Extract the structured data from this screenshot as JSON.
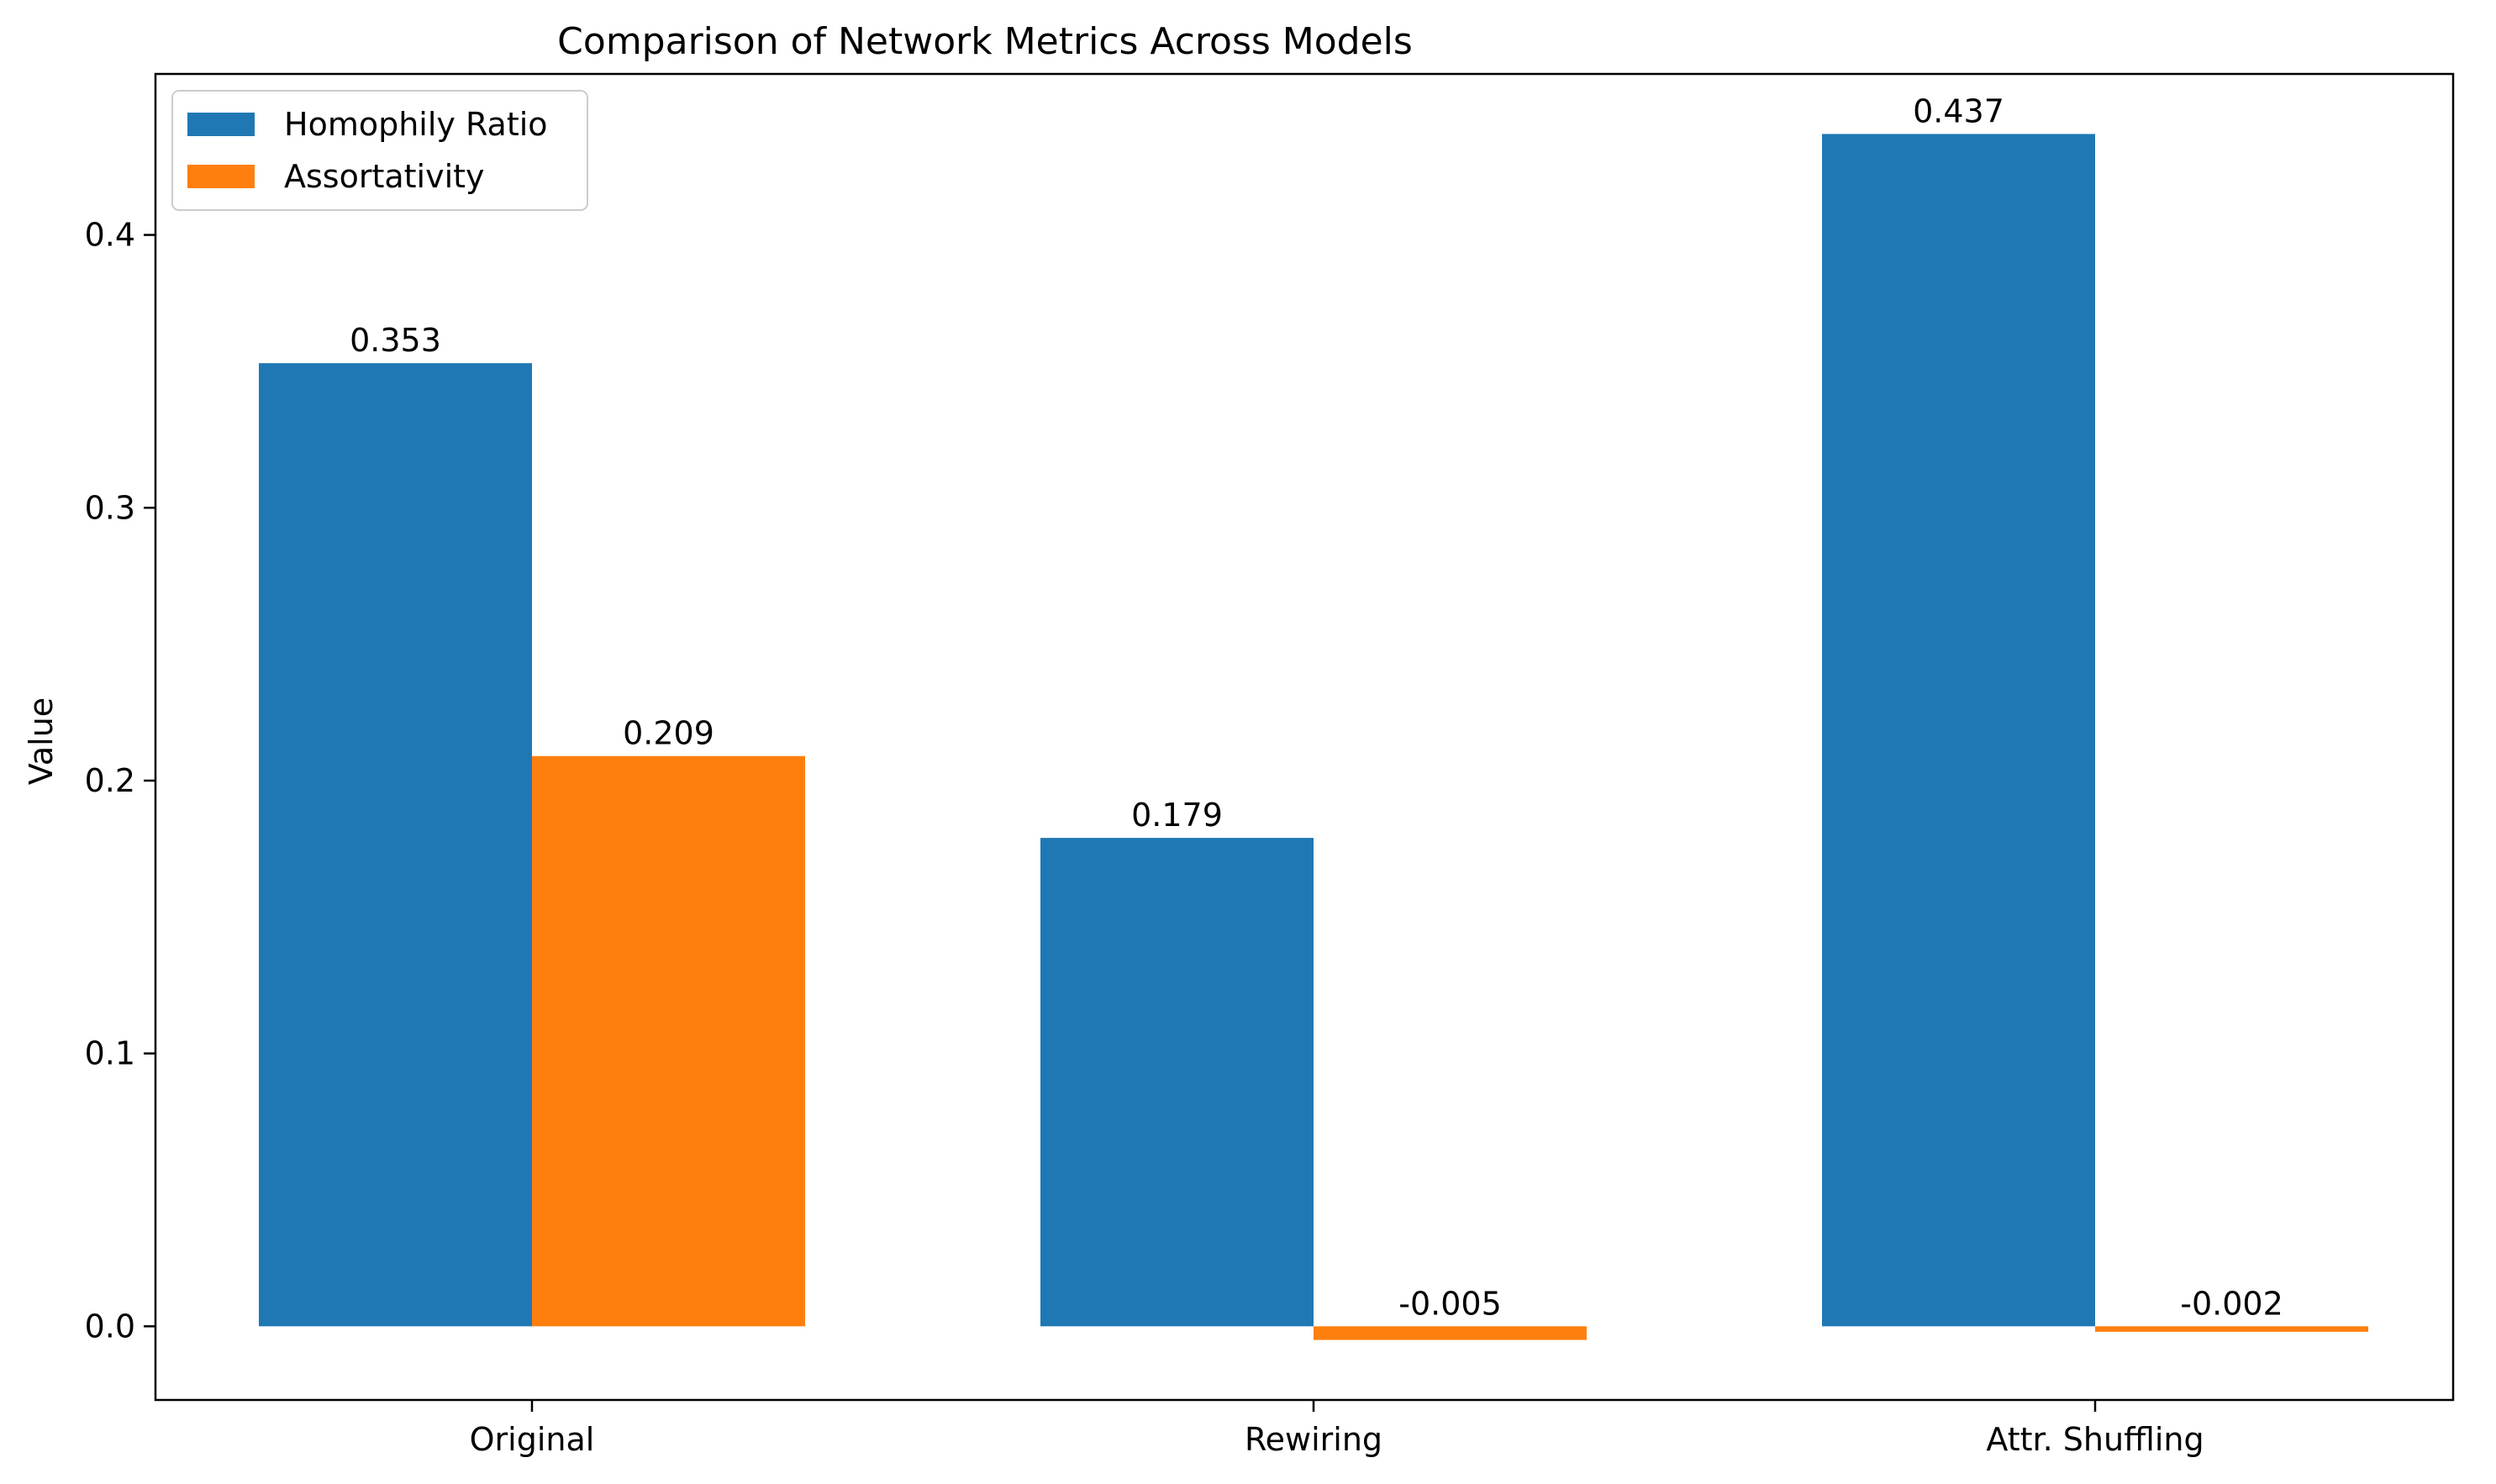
{
  "chart_data": {
    "type": "bar",
    "title": "Comparison of Network Metrics Across Models",
    "xlabel": "",
    "ylabel": "Value",
    "categories": [
      "Original",
      "Rewiring",
      "Attr. Shuffling"
    ],
    "series": [
      {
        "name": "Homophily Ratio",
        "values": [
          0.353,
          0.179,
          0.437
        ],
        "labels": [
          "0.353",
          "0.179",
          "0.437"
        ],
        "color": "#1f77b4"
      },
      {
        "name": "Assortativity",
        "values": [
          0.209,
          -0.005,
          -0.002
        ],
        "labels": [
          "0.209",
          "-0.005",
          "-0.002"
        ],
        "color": "#ff7f0e"
      }
    ],
    "ylim": [
      -0.027,
      0.459
    ],
    "yticks": [
      0.0,
      0.1,
      0.2,
      0.3,
      0.4
    ],
    "ytick_labels": [
      "0.0",
      "0.1",
      "0.2",
      "0.3",
      "0.4"
    ],
    "grid": false,
    "legend_position": "top-left"
  }
}
